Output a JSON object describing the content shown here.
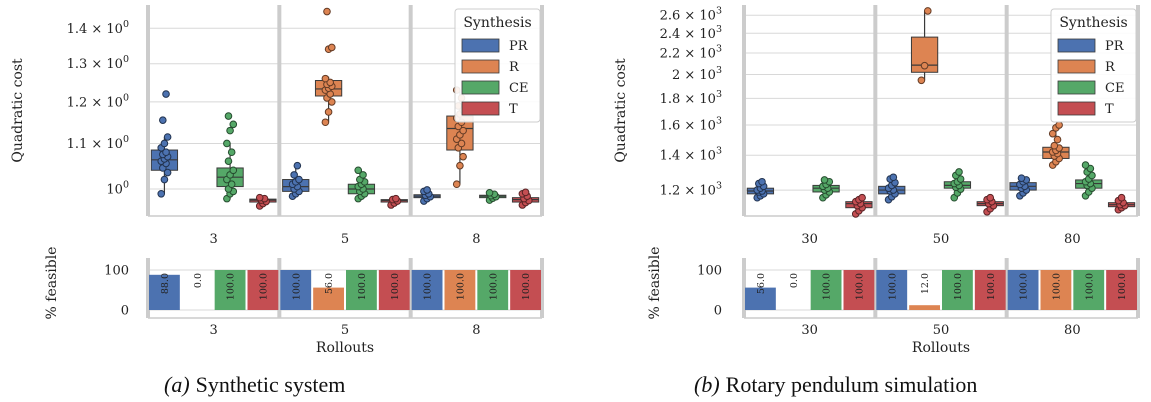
{
  "legend": {
    "title": "Synthesis",
    "entries": [
      "PR",
      "R",
      "CE",
      "T"
    ]
  },
  "colors": {
    "PR": "#4c72b0",
    "R": "#dd8452",
    "CE": "#55a868",
    "T": "#c44e52",
    "separator": "#cccccc",
    "grid": "#d8d8d8"
  },
  "chart_data": [
    {
      "type": "box",
      "panel": "a",
      "caption": "(a) Synthetic system",
      "caption_label": "(a)",
      "caption_text": "Synthetic system",
      "ylabel": "Quadratic cost",
      "yscale": "log",
      "ylim": [
        0.945,
        1.47
      ],
      "yticks": [
        {
          "value": 1.0,
          "base": "10",
          "exp": "0",
          "mult": ""
        },
        {
          "value": 1.1,
          "base": "10",
          "exp": "0",
          "mult": "1.1 × "
        },
        {
          "value": 1.2,
          "base": "10",
          "exp": "0",
          "mult": "1.2 × "
        },
        {
          "value": 1.3,
          "base": "10",
          "exp": "0",
          "mult": "1.3 × "
        },
        {
          "value": 1.4,
          "base": "10",
          "exp": "0",
          "mult": "1.4 × "
        }
      ],
      "categories": [
        "3",
        "5",
        "8"
      ],
      "series": [
        {
          "name": "PR",
          "boxes": [
            {
              "min": 0.99,
              "q1": 1.04,
              "median": 1.063,
              "q3": 1.085,
              "max": 1.115,
              "points": [
                0.99,
                1.02,
                1.035,
                1.045,
                1.055,
                1.06,
                1.065,
                1.07,
                1.075,
                1.08,
                1.09,
                1.1,
                1.115,
                1.155,
                1.22
              ]
            },
            {
              "min": 0.985,
              "q1": 0.995,
              "median": 1.005,
              "q3": 1.02,
              "max": 1.05,
              "points": [
                0.985,
                0.99,
                0.995,
                1.0,
                1.005,
                1.01,
                1.015,
                1.02,
                1.03,
                1.05
              ]
            },
            {
              "min": 0.975,
              "q1": 0.982,
              "median": 0.985,
              "q3": 0.988,
              "max": 0.998,
              "points": [
                0.975,
                0.98,
                0.984,
                0.987,
                0.99,
                0.995,
                0.998
              ]
            }
          ]
        },
        {
          "name": "R",
          "boxes": [
            null,
            {
              "min": 1.15,
              "q1": 1.215,
              "median": 1.233,
              "q3": 1.255,
              "max": 1.265,
              "points": [
                1.15,
                1.175,
                1.2,
                1.21,
                1.22,
                1.23,
                1.235,
                1.24,
                1.245,
                1.25,
                1.26,
                1.34,
                1.345,
                1.45
              ]
            },
            {
              "min": 1.01,
              "q1": 1.085,
              "median": 1.135,
              "q3": 1.165,
              "max": 1.23,
              "points": [
                1.01,
                1.05,
                1.07,
                1.09,
                1.1,
                1.11,
                1.12,
                1.13,
                1.14,
                1.15,
                1.16,
                1.17,
                1.18,
                1.19,
                1.21,
                1.23
              ]
            }
          ]
        },
        {
          "name": "CE",
          "boxes": [
            {
              "min": 0.98,
              "q1": 1.005,
              "median": 1.025,
              "q3": 1.045,
              "max": 1.1,
              "points": [
                0.98,
                0.99,
                0.995,
                1.0,
                1.01,
                1.02,
                1.03,
                1.04,
                1.06,
                1.08,
                1.1,
                1.13,
                1.145,
                1.165
              ]
            },
            {
              "min": 0.98,
              "q1": 0.99,
              "median": 1.0,
              "q3": 1.01,
              "max": 1.04,
              "points": [
                0.98,
                0.985,
                0.99,
                0.995,
                1.0,
                1.005,
                1.01,
                1.015,
                1.02,
                1.03,
                1.04
              ]
            },
            {
              "min": 0.977,
              "q1": 0.982,
              "median": 0.985,
              "q3": 0.987,
              "max": 0.992,
              "points": [
                0.977,
                0.981,
                0.984,
                0.986,
                0.989,
                0.992
              ]
            }
          ]
        },
        {
          "name": "T",
          "boxes": [
            {
              "min": 0.965,
              "q1": 0.973,
              "median": 0.977,
              "q3": 0.979,
              "max": 0.982,
              "points": [
                0.965,
                0.97,
                0.974,
                0.977,
                0.98,
                0.982
              ]
            },
            {
              "min": 0.967,
              "q1": 0.973,
              "median": 0.976,
              "q3": 0.978,
              "max": 0.98,
              "points": [
                0.967,
                0.971,
                0.975,
                0.978,
                0.98
              ]
            },
            {
              "min": 0.967,
              "q1": 0.973,
              "median": 0.978,
              "q3": 0.982,
              "max": 0.993,
              "points": [
                0.967,
                0.972,
                0.976,
                0.98,
                0.985,
                0.99,
                0.993
              ]
            }
          ]
        }
      ],
      "feasible": {
        "ylabel": "% feasible",
        "xlabel": "Rollouts",
        "ylim": [
          0,
          100
        ],
        "yticks": [
          "0",
          "100"
        ],
        "values": {
          "PR": [
            88.0,
            100.0,
            100.0
          ],
          "R": [
            0.0,
            56.0,
            100.0
          ],
          "CE": [
            100.0,
            100.0,
            100.0
          ],
          "T": [
            100.0,
            100.0,
            100.0
          ]
        },
        "labels": {
          "PR": [
            "88.0",
            "100.0",
            "100.0"
          ],
          "R": [
            "0.0",
            "56.0",
            "100.0"
          ],
          "CE": [
            "100.0",
            "100.0",
            "100.0"
          ],
          "T": [
            "100.0",
            "100.0",
            "100.0"
          ]
        }
      }
    },
    {
      "type": "box",
      "panel": "b",
      "caption": "(b) Rotary pendulum simulation",
      "caption_label": "(b)",
      "caption_text": "Rotary pendulum simulation",
      "ylabel": "Quadratic cost",
      "yscale": "log",
      "ylim": [
        1070,
        2720
      ],
      "yticks": [
        {
          "value": 1200,
          "base": "10",
          "exp": "3",
          "mult": "1.2 × "
        },
        {
          "value": 1400,
          "base": "10",
          "exp": "3",
          "mult": "1.4 × "
        },
        {
          "value": 1600,
          "base": "10",
          "exp": "3",
          "mult": "1.6 × "
        },
        {
          "value": 1800,
          "base": "10",
          "exp": "3",
          "mult": "1.8 × "
        },
        {
          "value": 2000,
          "base": "10",
          "exp": "3",
          "mult": "2 × "
        },
        {
          "value": 2200,
          "base": "10",
          "exp": "3",
          "mult": "2.2 × "
        },
        {
          "value": 2400,
          "base": "10",
          "exp": "3",
          "mult": "2.4 × "
        },
        {
          "value": 2600,
          "base": "10",
          "exp": "3",
          "mult": "2.6 × "
        }
      ],
      "categories": [
        "30",
        "50",
        "80"
      ],
      "series": [
        {
          "name": "PR",
          "boxes": [
            {
              "min": 1160,
              "q1": 1180,
              "median": 1195,
              "q3": 1210,
              "max": 1245,
              "points": [
                1160,
                1170,
                1180,
                1190,
                1195,
                1200,
                1210,
                1220,
                1235,
                1245
              ]
            },
            {
              "min": 1150,
              "q1": 1180,
              "median": 1200,
              "q3": 1220,
              "max": 1270,
              "points": [
                1150,
                1165,
                1180,
                1195,
                1200,
                1210,
                1225,
                1240,
                1260,
                1270
              ]
            },
            {
              "min": 1170,
              "q1": 1200,
              "median": 1220,
              "q3": 1240,
              "max": 1265,
              "points": [
                1170,
                1185,
                1200,
                1210,
                1220,
                1230,
                1245,
                1255,
                1265
              ]
            }
          ]
        },
        {
          "name": "R",
          "boxes": [
            null,
            {
              "min": 1950,
              "q1": 2020,
              "median": 2085,
              "q3": 2360,
              "max": 2650,
              "points": [
                1950,
                2080,
                2650
              ]
            },
            {
              "min": 1340,
              "q1": 1380,
              "median": 1420,
              "q3": 1450,
              "max": 1600,
              "points": [
                1340,
                1360,
                1380,
                1395,
                1410,
                1420,
                1430,
                1445,
                1460,
                1500,
                1540,
                1580,
                1600
              ]
            }
          ]
        },
        {
          "name": "CE",
          "boxes": [
            {
              "min": 1160,
              "q1": 1190,
              "median": 1210,
              "q3": 1225,
              "max": 1255,
              "points": [
                1160,
                1175,
                1190,
                1200,
                1210,
                1220,
                1230,
                1245,
                1255
              ]
            },
            {
              "min": 1160,
              "q1": 1210,
              "median": 1225,
              "q3": 1245,
              "max": 1300,
              "points": [
                1160,
                1185,
                1205,
                1215,
                1225,
                1235,
                1245,
                1260,
                1280,
                1300
              ]
            },
            {
              "min": 1170,
              "q1": 1210,
              "median": 1235,
              "q3": 1255,
              "max": 1340,
              "points": [
                1170,
                1190,
                1210,
                1225,
                1235,
                1245,
                1260,
                1280,
                1300,
                1320,
                1340
              ]
            }
          ]
        },
        {
          "name": "T",
          "boxes": [
            {
              "min": 1080,
              "q1": 1110,
              "median": 1130,
              "q3": 1140,
              "max": 1160,
              "points": [
                1080,
                1095,
                1110,
                1120,
                1130,
                1140,
                1150,
                1160
              ]
            },
            {
              "min": 1090,
              "q1": 1120,
              "median": 1130,
              "q3": 1140,
              "max": 1160,
              "points": [
                1090,
                1105,
                1120,
                1130,
                1140,
                1150,
                1160
              ]
            },
            {
              "min": 1100,
              "q1": 1115,
              "median": 1125,
              "q3": 1135,
              "max": 1160,
              "points": [
                1100,
                1110,
                1120,
                1125,
                1135,
                1145,
                1160
              ]
            }
          ]
        }
      ],
      "feasible": {
        "ylabel": "% feasible",
        "xlabel": "Rollouts",
        "ylim": [
          0,
          100
        ],
        "yticks": [
          "0",
          "100"
        ],
        "values": {
          "PR": [
            56.0,
            100.0,
            100.0
          ],
          "R": [
            0.0,
            12.0,
            100.0
          ],
          "CE": [
            100.0,
            100.0,
            100.0
          ],
          "T": [
            100.0,
            100.0,
            100.0
          ]
        },
        "labels": {
          "PR": [
            "56.0",
            "100.0",
            "100.0"
          ],
          "R": [
            "0.0",
            "12.0",
            "100.0"
          ],
          "CE": [
            "100.0",
            "100.0",
            "100.0"
          ],
          "T": [
            "100.0",
            "100.0",
            "100.0"
          ]
        }
      }
    }
  ]
}
